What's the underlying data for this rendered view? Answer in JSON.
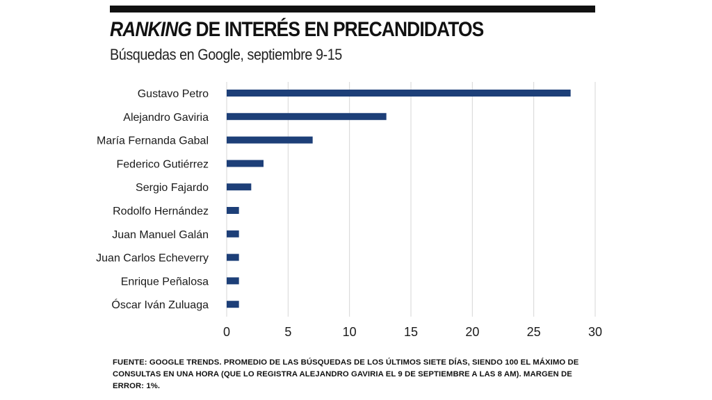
{
  "header": {
    "title_emphasis": "RANKING",
    "title_rest": " DE INTERÉS EN PRECANDIDATOS",
    "subtitle": "Búsquedas en Google, septiembre 9-15"
  },
  "colors": {
    "bar": "#1d3f78",
    "grid": "#d6d6d6",
    "rule": "#111111"
  },
  "chart_data": {
    "type": "bar",
    "orientation": "horizontal",
    "title": "RANKING DE INTERÉS EN PRECANDIDATOS",
    "subtitle": "Búsquedas en Google, septiembre 9-15",
    "xlabel": "",
    "ylabel": "",
    "categories": [
      "Gustavo Petro",
      "Alejandro Gaviria",
      "María Fernanda Gabal",
      "Federico Gutiérrez",
      "Sergio Fajardo",
      "Rodolfo Hernández",
      "Juan Manuel Galán",
      "Juan Carlos Echeverry",
      "Enrique Peñalosa",
      "Óscar Iván Zuluaga"
    ],
    "values": [
      28,
      13,
      7,
      3,
      2,
      1,
      1,
      1,
      1,
      1
    ],
    "xlim": [
      0,
      30
    ],
    "xticks": [
      "0",
      "5",
      "10",
      "15",
      "20",
      "25",
      "30"
    ],
    "grid": "vertical"
  },
  "footnote": "FUENTE: GOOGLE TRENDS. PROMEDIO DE LAS BÚSQUEDAS DE LOS ÚLTIMOS SIETE DÍAS, SIENDO 100 EL MÁXIMO DE CONSULTAS EN UNA HORA (QUE LO REGISTRA ALEJANDRO GAVIRIA EL 9 DE SEPTIEMBRE A LAS 8 AM). MARGEN DE ERROR: 1%."
}
